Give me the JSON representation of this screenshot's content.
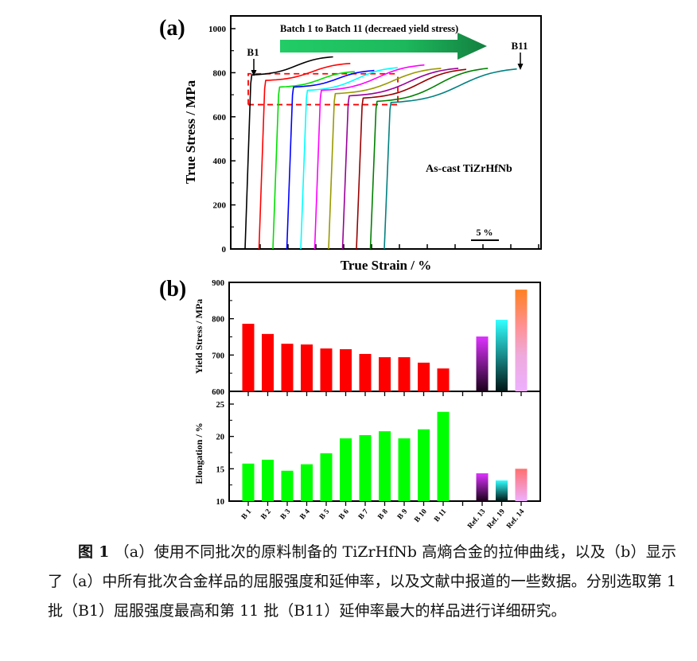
{
  "chart_data": [
    {
      "panel_label": "(a)",
      "type": "line",
      "title": "",
      "xlabel": "True Strain / %",
      "ylabel": "True Stress / MPa",
      "ylim": [
        0,
        1000
      ],
      "yticks": [
        0,
        200,
        400,
        600,
        800,
        1000
      ],
      "x_scale_bar": "5 %",
      "x_scale_bar_value": 5,
      "annotation_arrow_text": "Batch 1 to Batch 11 (decreaed yield stress)",
      "annotation_material": "As-cast TiZrHfNb",
      "markers": [
        {
          "label": "B1",
          "series": "B1"
        },
        {
          "label": "B11",
          "series": "B11"
        }
      ],
      "yield_band": {
        "upper": 795,
        "lower": 655
      },
      "series_note": "curves offset horizontally by ~2.5% strain each for clarity",
      "series": [
        {
          "name": "B1",
          "color": "#000000",
          "offset_pct": 0.0,
          "yield": 790,
          "ultimate": 872,
          "elongation": 15.8
        },
        {
          "name": "B2",
          "color": "#ff0000",
          "offset_pct": 2.5,
          "yield": 765,
          "ultimate": 842,
          "elongation": 16.4
        },
        {
          "name": "B3",
          "color": "#00e000",
          "offset_pct": 5.0,
          "yield": 735,
          "ultimate": 805,
          "elongation": 14.7
        },
        {
          "name": "B4",
          "color": "#0000ff",
          "offset_pct": 7.5,
          "yield": 735,
          "ultimate": 810,
          "elongation": 15.7
        },
        {
          "name": "B5",
          "color": "#00ffff",
          "offset_pct": 10.0,
          "yield": 720,
          "ultimate": 823,
          "elongation": 17.4
        },
        {
          "name": "B6",
          "color": "#ff00ff",
          "offset_pct": 12.5,
          "yield": 720,
          "ultimate": 835,
          "elongation": 19.7
        },
        {
          "name": "B7",
          "color": "#999900",
          "offset_pct": 15.0,
          "yield": 705,
          "ultimate": 820,
          "elongation": 20.2
        },
        {
          "name": "B8",
          "color": "#990099",
          "offset_pct": 17.5,
          "yield": 695,
          "ultimate": 820,
          "elongation": 20.8
        },
        {
          "name": "B9",
          "color": "#990000",
          "offset_pct": 20.0,
          "yield": 685,
          "ultimate": 815,
          "elongation": 19.7
        },
        {
          "name": "B10",
          "color": "#008000",
          "offset_pct": 22.5,
          "yield": 670,
          "ultimate": 820,
          "elongation": 21.1
        },
        {
          "name": "B11",
          "color": "#008080",
          "offset_pct": 25.0,
          "yield": 665,
          "ultimate": 817,
          "elongation": 23.8
        }
      ]
    },
    {
      "panel_label": "(b)",
      "type": "bar",
      "categories": [
        "B 1",
        "B 2",
        "B 3",
        "B 4",
        "B 5",
        "B 6",
        "B 7",
        "B 8",
        "B 9",
        "B 10",
        "B 11",
        "",
        "Ref. 13",
        "Ref. 19",
        "Ref. 14"
      ],
      "subplots": [
        {
          "ylabel": "Yield Stress / MPa",
          "ylim": [
            600,
            900
          ],
          "yticks": [
            600,
            700,
            800,
            900
          ],
          "values": [
            786,
            758,
            731,
            729,
            718,
            716,
            703,
            694,
            694,
            679,
            663,
            null,
            751,
            797,
            880
          ]
        },
        {
          "ylabel": "Elongation / %",
          "ylim": [
            10,
            25
          ],
          "yticks": [
            10,
            15,
            20,
            25
          ],
          "values": [
            15.8,
            16.4,
            14.7,
            15.7,
            17.4,
            19.7,
            20.2,
            20.8,
            19.7,
            21.1,
            23.8,
            null,
            14.3,
            13.2,
            15.0
          ]
        }
      ],
      "bar_colors": {
        "yield_batches": "#ff0000",
        "elongation_batches": "#00ff00",
        "ref13": [
          "#dd33ff",
          "#220022"
        ],
        "ref19": [
          "#33ffff",
          "#002222"
        ],
        "ref14_yield": [
          "#ff8020",
          "#ee99cc",
          "#eeb0ff"
        ],
        "ref14_elong": [
          "#ff6f6f",
          "#eeb0ff"
        ]
      }
    }
  ],
  "caption": {
    "label": "图 1",
    "text": "（a）使用不同批次的原料制备的 TiZrHfNb 高熵合金的拉伸曲线，以及（b）显示了（a）中所有批次合金样品的屈服强度和延伸率，以及文献中报道的一些数据。分别选取第 1 批（B1）屈服强度最高和第 11 批（B11）延伸率最大的样品进行详细研究。"
  }
}
